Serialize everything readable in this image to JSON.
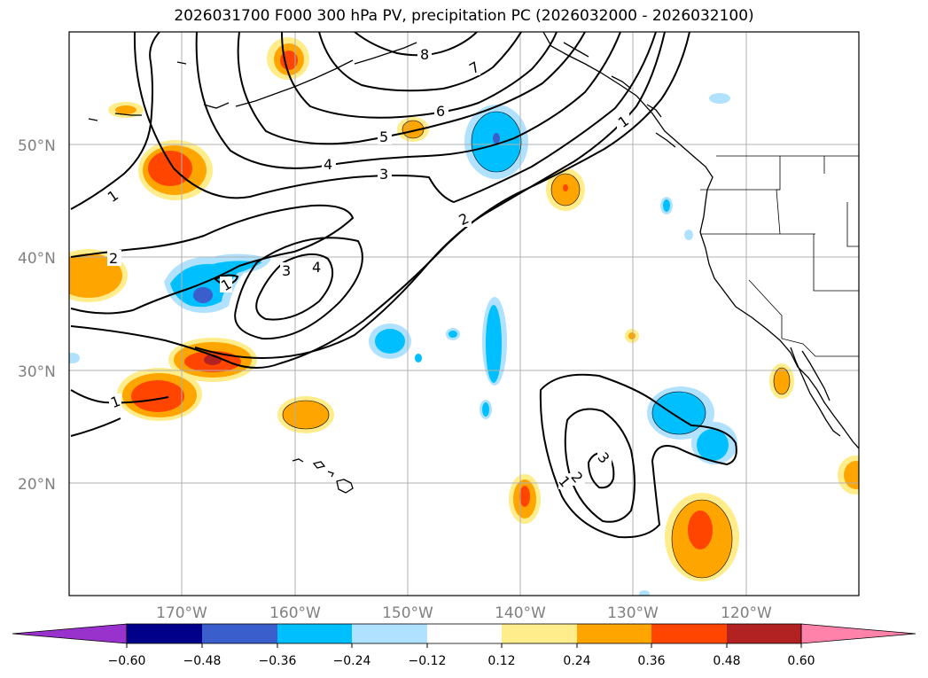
{
  "title": "2026031700 F000 300 hPa PV, precipitation PC (2026032000 - 2026032100)",
  "lat_labels": [
    "50°N",
    "40°N",
    "30°N",
    "20°N"
  ],
  "lon_labels": [
    "170°W",
    "160°W",
    "150°W",
    "140°W",
    "130°W",
    "120°W"
  ],
  "contour_labels": [
    "8",
    "7",
    "6",
    "5",
    "4",
    "3",
    "2",
    "1",
    "1",
    "1",
    "2",
    "3",
    "4",
    "3",
    "1",
    "1",
    "2",
    "3"
  ],
  "colorbar": {
    "ticks": [
      "−0.60",
      "−0.48",
      "−0.36",
      "−0.24",
      "−0.12",
      "0.12",
      "0.24",
      "0.36",
      "0.48",
      "0.60"
    ],
    "colors": [
      "#9932cc",
      "#00008b",
      "#3a5fcd",
      "#00bfff",
      "#b0e2ff",
      "#ffffff",
      "#ffec8b",
      "#ffa500",
      "#ff4500",
      "#b22222",
      "#ff82ab"
    ]
  },
  "colors": {
    "orange": "#ffa500",
    "red": "#ff4500",
    "yellow": "#ffec8b",
    "cyan": "#00bfff",
    "lightblue": "#b0e2ff",
    "blue": "#3a5fcd",
    "darkred": "#b22222"
  }
}
